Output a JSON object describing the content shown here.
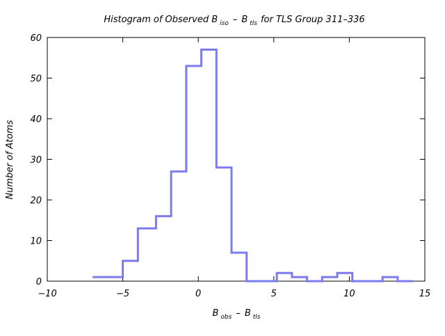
{
  "chart_data": {
    "type": "histogram",
    "title": {
      "main_prefix": "Histogram of Observed B",
      "sub_iso": "iso",
      "minus": "–",
      "main_b": "B",
      "sub_tls": "tls",
      "suffix": "for TLS Group 311–336"
    },
    "xlabel": {
      "b1": "B",
      "sub_obs": "obs",
      "minus": "–",
      "b2": "B",
      "sub_tls": "tls"
    },
    "ylabel": "Number of Atoms",
    "xlim": [
      -10,
      15
    ],
    "ylim": [
      0,
      60
    ],
    "xticks": [
      -10,
      -5,
      0,
      5,
      10,
      15
    ],
    "xtick_labels": [
      "−10",
      "−5",
      "0",
      "5",
      "10",
      "15"
    ],
    "yticks": [
      0,
      10,
      20,
      30,
      40,
      50,
      60
    ],
    "ytick_labels": [
      "0",
      "10",
      "20",
      "30",
      "40",
      "50",
      "60"
    ],
    "grid": false,
    "legend": "none",
    "line_color": "#7b7bef",
    "bins": [
      {
        "x0": -7.0,
        "x1": -5.0,
        "count": 1
      },
      {
        "x0": -5.0,
        "x1": -4.0,
        "count": 5
      },
      {
        "x0": -4.0,
        "x1": -2.8,
        "count": 13
      },
      {
        "x0": -2.8,
        "x1": -1.8,
        "count": 16
      },
      {
        "x0": -1.8,
        "x1": -0.8,
        "count": 27
      },
      {
        "x0": -0.8,
        "x1": 0.2,
        "count": 53
      },
      {
        "x0": 0.2,
        "x1": 1.2,
        "count": 57
      },
      {
        "x0": 1.2,
        "x1": 2.2,
        "count": 28
      },
      {
        "x0": 2.2,
        "x1": 3.2,
        "count": 7
      },
      {
        "x0": 3.2,
        "x1": 5.2,
        "count": 0
      },
      {
        "x0": 5.2,
        "x1": 6.2,
        "count": 2
      },
      {
        "x0": 6.2,
        "x1": 7.2,
        "count": 1
      },
      {
        "x0": 7.2,
        "x1": 8.2,
        "count": 0
      },
      {
        "x0": 8.2,
        "x1": 9.2,
        "count": 1
      },
      {
        "x0": 9.2,
        "x1": 10.2,
        "count": 2
      },
      {
        "x0": 10.2,
        "x1": 12.2,
        "count": 0
      },
      {
        "x0": 12.2,
        "x1": 13.2,
        "count": 1
      },
      {
        "x0": 13.2,
        "x1": 14.2,
        "count": 0
      }
    ]
  }
}
